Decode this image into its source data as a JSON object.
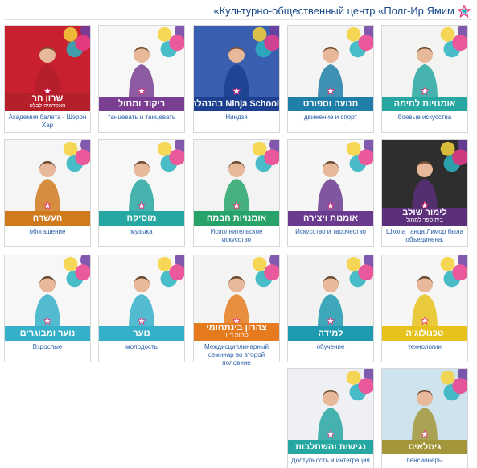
{
  "header": {
    "title": "«Культурно-общественный центр «Полг-Ир Ямим",
    "logo_icon": "star-logo-icon"
  },
  "cards": [
    {
      "band": "אומנויות לחימה",
      "sub": "",
      "caption": "боевые искусства",
      "color": "#27a7a2",
      "bg": "#f3f3f1",
      "icon": "martial-arts-photo"
    },
    {
      "band": "תנועה וספורט",
      "sub": "",
      "caption": "движение и спорт",
      "color": "#1f7fa8",
      "bg": "#f4f4f4",
      "icon": "sport-photo"
    },
    {
      "band": "Ninja School בהנהלת ניל מרגין",
      "sub": "",
      "caption": "Ниндзя",
      "color": "#1c3f8f",
      "bg": "#3a5fb0",
      "icon": "ninja-school-photo"
    },
    {
      "band": "ריקוד ומחול",
      "sub": "",
      "caption": "танцевать и танцевать",
      "color": "#7a3f92",
      "bg": "#f7f7f7",
      "icon": "dance-photo"
    },
    {
      "band": "שרון הר",
      "sub": "האקדמיה לבלט",
      "caption": "Академия балета - Шэрон Хар",
      "color": "#b41f2a",
      "bg": "#c8202e",
      "icon": "ballet-academy-photo"
    },
    {
      "band": "לימור שולב",
      "sub": "בית ספר למחול",
      "caption": "Школа танца Лимор была объединена.",
      "color": "#5b2f7a",
      "bg": "#2e2e2e",
      "icon": "dance-school-photo"
    },
    {
      "band": "אומנות ויצירה",
      "sub": "",
      "caption": "Искусство и творчество",
      "color": "#6a3a8f",
      "bg": "#f6f6f6",
      "icon": "art-photo"
    },
    {
      "band": "אומנויות הבמה",
      "sub": "",
      "caption": "Исполнительское искусство",
      "color": "#27a36a",
      "bg": "#f3f3f3",
      "icon": "stage-arts-photo"
    },
    {
      "band": "מוסיקה",
      "sub": "",
      "caption": "музыка",
      "color": "#27a7a2",
      "bg": "#f7f7f7",
      "icon": "music-photo"
    },
    {
      "band": "העשרה",
      "sub": "",
      "caption": "обогащение",
      "color": "#d07a1e",
      "bg": "#f5f5f5",
      "icon": "enrichment-photo"
    },
    {
      "band": "טכנולוגיה",
      "sub": "",
      "caption": "технологии",
      "color": "#e8c21c",
      "bg": "#f6f6f6",
      "icon": "technology-photo"
    },
    {
      "band": "למידה",
      "sub": "",
      "caption": "обучение",
      "color": "#1f9ab0",
      "bg": "#f2f2f2",
      "icon": "learning-photo"
    },
    {
      "band": "צהרון בינתחומי",
      "sub": "כיתות ד'-ו'",
      "caption": "Междисциплинарный семинар во второй половине",
      "color": "#e57b1e",
      "bg": "#f4f4f4",
      "icon": "seminar-photo"
    },
    {
      "band": "נוער",
      "sub": "",
      "caption": "молодость",
      "color": "#36b0c9",
      "bg": "#f7f7f7",
      "icon": "youth-photo"
    },
    {
      "band": "נוער ומבוגרים",
      "sub": "",
      "caption": "Взрослые",
      "color": "#36b0c9",
      "bg": "#f7f7f7",
      "icon": "adults-photo"
    },
    {
      "band": "גימלאים",
      "sub": "",
      "caption": "пенсионеры",
      "color": "#a3963a",
      "bg": "#cfe3ef",
      "icon": "seniors-photo"
    },
    {
      "band": "נגישות והשתלבות",
      "sub": "",
      "caption": "Доступность и интеграция",
      "color": "#27a7a2",
      "bg": "#eef0f3",
      "icon": "accessibility-photo"
    }
  ]
}
